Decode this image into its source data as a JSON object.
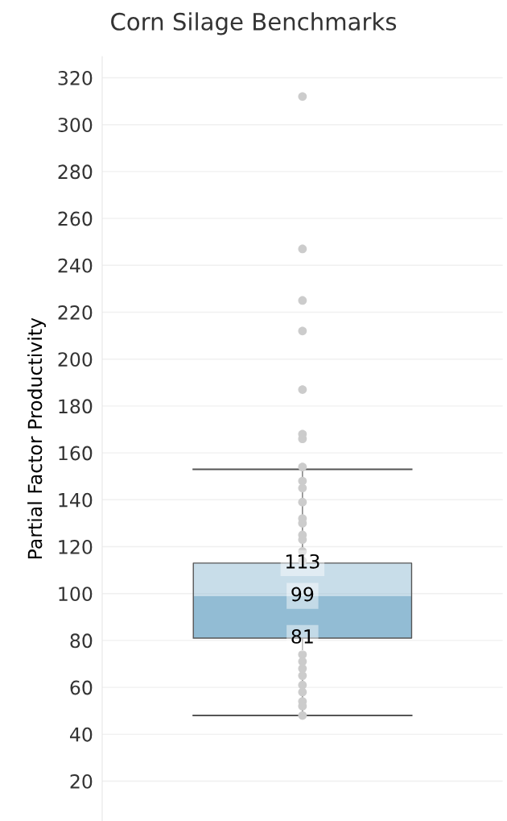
{
  "chart_data": {
    "type": "box",
    "title": "Corn Silage Benchmarks",
    "ylabel": "Partial Factor Productivity",
    "categories": [
      null
    ],
    "series": [
      {
        "color": "#92bcd4",
        "boxes": [
          {
            "low": 48,
            "q1": 81,
            "median": 99,
            "q3": 113,
            "high": 153
          }
        ]
      },
      {
        "type": "scatter",
        "color": "#cccccc",
        "x": [
          null,
          null,
          null,
          null,
          null,
          null,
          null,
          null,
          null,
          null,
          null,
          null,
          null,
          null,
          null,
          null,
          null,
          null,
          null,
          null,
          null,
          null,
          null,
          null,
          null,
          null
        ],
        "values": [
          312,
          247,
          225,
          212,
          187,
          168,
          166,
          154,
          148,
          145,
          139,
          132,
          130,
          125,
          123,
          118,
          114,
          74,
          71,
          68,
          65,
          61,
          58,
          54,
          52,
          48
        ]
      }
    ],
    "annotations": [
      {
        "text": "113",
        "y": 113
      },
      {
        "text": "99",
        "y": 99
      },
      {
        "text": "81",
        "y": 81
      }
    ],
    "ylim": [
      3,
      329
    ],
    "yticks": [
      20,
      40,
      60,
      80,
      100,
      120,
      140,
      160,
      180,
      200,
      220,
      240,
      260,
      280,
      300,
      320
    ],
    "grid": "y"
  }
}
